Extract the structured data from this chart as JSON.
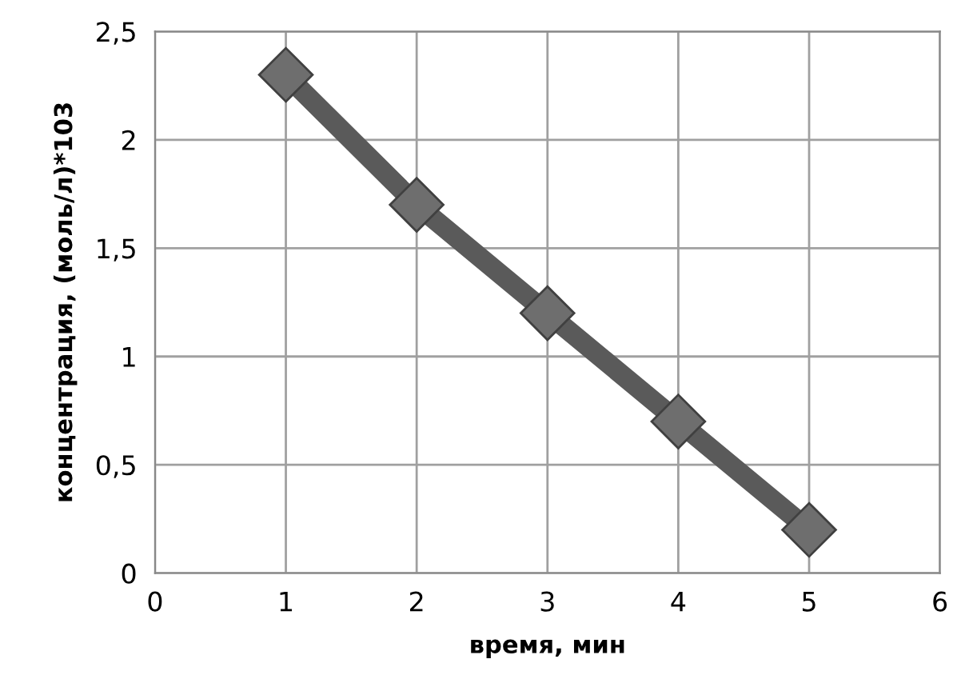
{
  "chart_data": {
    "type": "line",
    "xlabel": "время, мин",
    "ylabel": "концентрация, (моль/л)*103",
    "x": [
      1,
      2,
      3,
      4,
      5
    ],
    "series": [
      {
        "color": "#5a5a5a",
        "values": [
          2.3,
          1.7,
          1.2,
          0.7,
          0.2
        ]
      }
    ],
    "xlim": [
      0,
      6
    ],
    "xticks": [
      0,
      1,
      2,
      3,
      4,
      5,
      6
    ],
    "ylim": [
      0,
      2.5
    ],
    "yticks": [
      0,
      {
        "value": 0.5,
        "label": "0,5"
      },
      1,
      {
        "value": 1.5,
        "label": "1,5"
      },
      2,
      {
        "value": 2.5,
        "label": "2,5"
      }
    ],
    "grid": true,
    "marker": "diamond",
    "line_style": "solid"
  }
}
